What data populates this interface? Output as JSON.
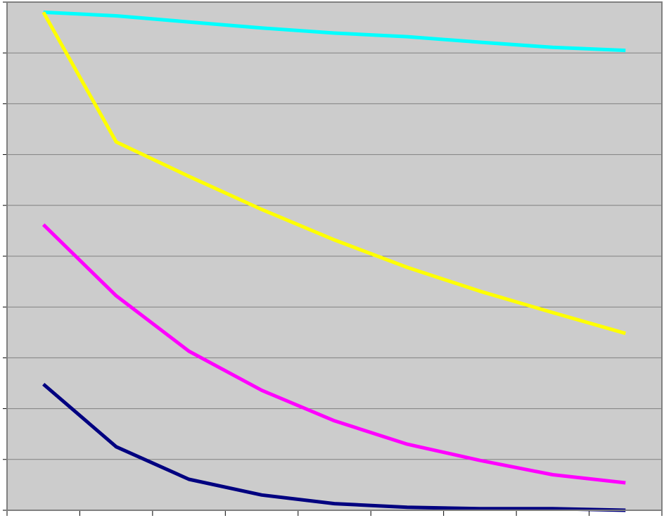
{
  "chart_data": {
    "type": "line",
    "title": "",
    "xlabel": "",
    "ylabel": "",
    "x": [
      1,
      2,
      3,
      4,
      5,
      6,
      7,
      8,
      9
    ],
    "xlim": [
      0.5,
      9.5
    ],
    "ylim": [
      0,
      100
    ],
    "grid": true,
    "legend": "none",
    "background": "#cccccc",
    "gridline_color": "#808080",
    "series": [
      {
        "color": "#00ffff",
        "values": [
          98,
          97.3,
          96.1,
          94.9,
          93.9,
          93.2,
          92.1,
          91.1,
          90.5
        ]
      },
      {
        "color": "#ffff00",
        "values": [
          98,
          72.5,
          65.7,
          59.2,
          53.2,
          47.8,
          43.1,
          38.9,
          34.8
        ]
      },
      {
        "color": "#ff00ff",
        "values": [
          56.2,
          42.2,
          31.3,
          23.6,
          17.6,
          13.0,
          9.8,
          7.0,
          5.4
        ]
      },
      {
        "color": "#000080",
        "values": [
          24.8,
          12.5,
          6.1,
          3.0,
          1.3,
          0.6,
          0.3,
          0.3,
          0.0
        ]
      }
    ]
  }
}
